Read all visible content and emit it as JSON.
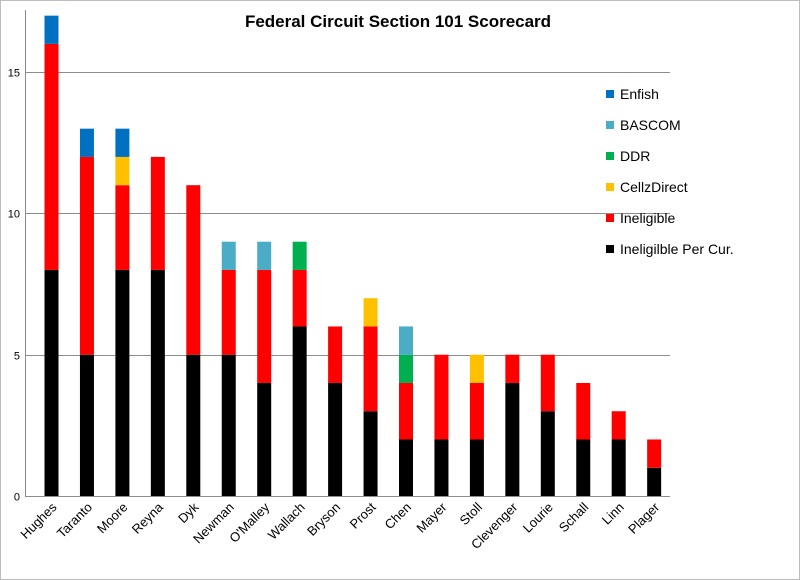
{
  "chart_data": {
    "type": "bar",
    "stacked": true,
    "title": "Federal Circuit Section 101 Scorecard",
    "xlabel": "",
    "ylabel": "",
    "ylim": [
      0,
      17.2
    ],
    "yticks": [
      0,
      5,
      10,
      15
    ],
    "grid": true,
    "legend_position": "right",
    "categories": [
      "Hughes",
      "Taranto",
      "Moore",
      "Reyna",
      "Dyk",
      "Newman",
      "O'Malley",
      "Wallach",
      "Bryson",
      "Prost",
      "Chen",
      "Mayer",
      "Stoll",
      "Clevenger",
      "Lourie",
      "Schall",
      "Linn",
      "Plager"
    ],
    "series": [
      {
        "name": "Ineligilble Per Cur.",
        "color": "#000000",
        "values": [
          8,
          5,
          8,
          8,
          5,
          5,
          4,
          6,
          4,
          3,
          2,
          2,
          2,
          4,
          3,
          2,
          2,
          1
        ]
      },
      {
        "name": "Ineligible",
        "color": "#ff0000",
        "values": [
          8,
          7,
          3,
          4,
          6,
          3,
          4,
          2,
          2,
          3,
          2,
          3,
          2,
          1,
          2,
          2,
          1,
          1
        ]
      },
      {
        "name": "CellzDirect",
        "color": "#ffc000",
        "values": [
          0,
          0,
          1,
          0,
          0,
          0,
          0,
          0,
          0,
          1,
          0,
          0,
          1,
          0,
          0,
          0,
          0,
          0
        ]
      },
      {
        "name": "DDR",
        "color": "#00b050",
        "values": [
          0,
          0,
          0,
          0,
          0,
          0,
          0,
          1,
          0,
          0,
          1,
          0,
          0,
          0,
          0,
          0,
          0,
          0
        ]
      },
      {
        "name": "BASCOM",
        "color": "#4bacc6",
        "values": [
          0,
          0,
          0,
          0,
          0,
          1,
          1,
          0,
          0,
          0,
          1,
          0,
          0,
          0,
          0,
          0,
          0,
          0
        ]
      },
      {
        "name": "Enfish",
        "color": "#0070c0",
        "values": [
          1,
          1,
          1,
          0,
          0,
          0,
          0,
          0,
          0,
          0,
          0,
          0,
          0,
          0,
          0,
          0,
          0,
          0
        ]
      }
    ],
    "legend_order": [
      "Enfish",
      "BASCOM",
      "DDR",
      "CellzDirect",
      "Ineligible",
      "Ineligilble Per Cur."
    ]
  }
}
